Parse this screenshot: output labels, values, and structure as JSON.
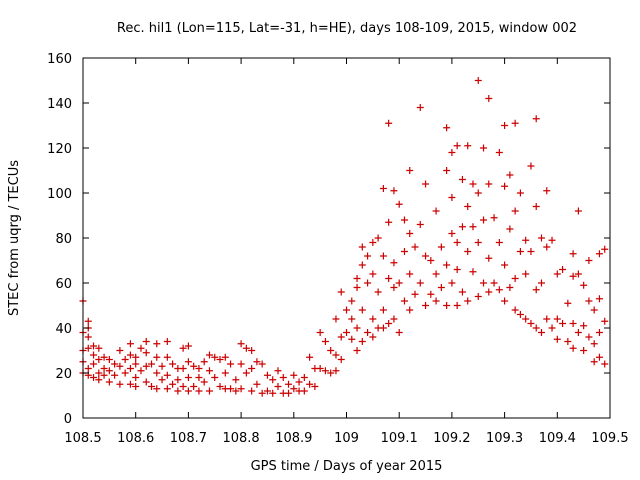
{
  "chart_data": {
    "type": "scatter",
    "title": "Rec. hil1 (Lon=115, Lat=-31, h=HE), days 108-109, 2015, window 002",
    "xlabel": "GPS time / Days of year 2015",
    "ylabel": "STEC from uqrg / TECUs",
    "xlim": [
      108.5,
      109.5
    ],
    "ylim": [
      0,
      160
    ],
    "xticks": [
      "108.5",
      "108.6",
      "108.7",
      "108.8",
      "108.9",
      "109",
      "109.1",
      "109.2",
      "109.3",
      "109.4",
      "109.5"
    ],
    "yticks": [
      "0",
      "20",
      "40",
      "60",
      "80",
      "100",
      "120",
      "140",
      "160"
    ],
    "grid": false,
    "marker": "plus",
    "color": "#cc0000",
    "series": [
      {
        "points": [
          [
            108.5,
            52
          ],
          [
            108.5,
            38
          ],
          [
            108.5,
            30
          ],
          [
            108.5,
            25
          ],
          [
            108.5,
            20
          ],
          [
            108.51,
            43
          ],
          [
            108.51,
            40
          ],
          [
            108.51,
            36
          ],
          [
            108.51,
            31
          ],
          [
            108.51,
            22
          ],
          [
            108.51,
            19
          ],
          [
            108.52,
            32
          ],
          [
            108.52,
            28
          ],
          [
            108.52,
            24
          ],
          [
            108.52,
            18
          ],
          [
            108.53,
            31
          ],
          [
            108.53,
            26
          ],
          [
            108.53,
            20
          ],
          [
            108.53,
            17
          ],
          [
            108.54,
            27
          ],
          [
            108.54,
            22
          ],
          [
            108.54,
            19
          ],
          [
            108.55,
            26
          ],
          [
            108.55,
            21
          ],
          [
            108.55,
            16
          ],
          [
            108.56,
            24
          ],
          [
            108.56,
            19
          ],
          [
            108.57,
            30
          ],
          [
            108.57,
            23
          ],
          [
            108.57,
            15
          ],
          [
            108.58,
            26
          ],
          [
            108.58,
            20
          ],
          [
            108.59,
            33
          ],
          [
            108.59,
            28
          ],
          [
            108.59,
            22
          ],
          [
            108.59,
            15
          ],
          [
            108.6,
            27
          ],
          [
            108.6,
            24
          ],
          [
            108.6,
            18
          ],
          [
            108.6,
            14
          ],
          [
            108.61,
            31
          ],
          [
            108.61,
            21
          ],
          [
            108.62,
            34
          ],
          [
            108.62,
            29
          ],
          [
            108.62,
            23
          ],
          [
            108.62,
            16
          ],
          [
            108.63,
            24
          ],
          [
            108.63,
            14
          ],
          [
            108.64,
            33
          ],
          [
            108.64,
            27
          ],
          [
            108.64,
            20
          ],
          [
            108.64,
            13
          ],
          [
            108.65,
            23
          ],
          [
            108.65,
            17
          ],
          [
            108.66,
            34
          ],
          [
            108.66,
            27
          ],
          [
            108.66,
            19
          ],
          [
            108.66,
            13
          ],
          [
            108.67,
            24
          ],
          [
            108.67,
            15
          ],
          [
            108.68,
            22
          ],
          [
            108.68,
            17
          ],
          [
            108.68,
            12
          ],
          [
            108.69,
            31
          ],
          [
            108.69,
            22
          ],
          [
            108.69,
            14
          ],
          [
            108.7,
            32
          ],
          [
            108.7,
            25
          ],
          [
            108.7,
            18
          ],
          [
            108.7,
            12
          ],
          [
            108.71,
            23
          ],
          [
            108.71,
            14
          ],
          [
            108.72,
            22
          ],
          [
            108.72,
            18
          ],
          [
            108.72,
            12
          ],
          [
            108.73,
            25
          ],
          [
            108.73,
            16
          ],
          [
            108.74,
            28
          ],
          [
            108.74,
            21
          ],
          [
            108.74,
            12
          ],
          [
            108.75,
            27
          ],
          [
            108.75,
            18
          ],
          [
            108.76,
            26
          ],
          [
            108.76,
            14
          ],
          [
            108.77,
            27
          ],
          [
            108.77,
            20
          ],
          [
            108.77,
            13
          ],
          [
            108.78,
            24
          ],
          [
            108.78,
            13
          ],
          [
            108.79,
            17
          ],
          [
            108.79,
            12
          ],
          [
            108.8,
            33
          ],
          [
            108.8,
            24
          ],
          [
            108.8,
            13
          ],
          [
            108.81,
            31
          ],
          [
            108.81,
            20
          ],
          [
            108.82,
            30
          ],
          [
            108.82,
            22
          ],
          [
            108.82,
            12
          ],
          [
            108.83,
            25
          ],
          [
            108.83,
            15
          ],
          [
            108.84,
            24
          ],
          [
            108.84,
            11
          ],
          [
            108.85,
            19
          ],
          [
            108.85,
            12
          ],
          [
            108.86,
            17
          ],
          [
            108.86,
            11
          ],
          [
            108.87,
            21
          ],
          [
            108.87,
            14
          ],
          [
            108.88,
            18
          ],
          [
            108.88,
            11
          ],
          [
            108.89,
            15
          ],
          [
            108.89,
            11
          ],
          [
            108.9,
            19
          ],
          [
            108.9,
            13
          ],
          [
            108.91,
            16
          ],
          [
            108.91,
            12
          ],
          [
            108.92,
            18
          ],
          [
            108.92,
            12
          ],
          [
            108.93,
            27
          ],
          [
            108.93,
            15
          ],
          [
            108.94,
            22
          ],
          [
            108.94,
            14
          ],
          [
            108.95,
            38
          ],
          [
            108.95,
            22
          ],
          [
            108.96,
            34
          ],
          [
            108.96,
            21
          ],
          [
            108.97,
            30
          ],
          [
            108.97,
            20
          ],
          [
            108.98,
            44
          ],
          [
            108.98,
            28
          ],
          [
            108.98,
            21
          ],
          [
            108.99,
            56
          ],
          [
            108.99,
            36
          ],
          [
            108.99,
            26
          ],
          [
            109.0,
            48
          ],
          [
            109.0,
            38
          ],
          [
            109.01,
            52
          ],
          [
            109.01,
            44
          ],
          [
            109.01,
            35
          ],
          [
            109.02,
            62
          ],
          [
            109.02,
            58
          ],
          [
            109.02,
            40
          ],
          [
            109.02,
            30
          ],
          [
            109.03,
            76
          ],
          [
            109.03,
            68
          ],
          [
            109.03,
            48
          ],
          [
            109.03,
            34
          ],
          [
            109.04,
            72
          ],
          [
            109.04,
            60
          ],
          [
            109.04,
            38
          ],
          [
            109.05,
            78
          ],
          [
            109.05,
            64
          ],
          [
            109.05,
            44
          ],
          [
            109.05,
            36
          ],
          [
            109.06,
            80
          ],
          [
            109.06,
            56
          ],
          [
            109.06,
            40
          ],
          [
            109.07,
            102
          ],
          [
            109.07,
            72
          ],
          [
            109.07,
            48
          ],
          [
            109.07,
            40
          ],
          [
            109.08,
            131
          ],
          [
            109.08,
            87
          ],
          [
            109.08,
            62
          ],
          [
            109.08,
            42
          ],
          [
            109.09,
            101
          ],
          [
            109.09,
            69
          ],
          [
            109.09,
            58
          ],
          [
            109.09,
            44
          ],
          [
            109.1,
            95
          ],
          [
            109.1,
            60
          ],
          [
            109.1,
            38
          ],
          [
            109.11,
            88
          ],
          [
            109.11,
            74
          ],
          [
            109.11,
            52
          ],
          [
            109.12,
            110
          ],
          [
            109.12,
            82
          ],
          [
            109.12,
            64
          ],
          [
            109.12,
            48
          ],
          [
            109.13,
            76
          ],
          [
            109.13,
            55
          ],
          [
            109.14,
            138
          ],
          [
            109.14,
            86
          ],
          [
            109.14,
            60
          ],
          [
            109.15,
            104
          ],
          [
            109.15,
            72
          ],
          [
            109.15,
            50
          ],
          [
            109.16,
            70
          ],
          [
            109.16,
            55
          ],
          [
            109.17,
            92
          ],
          [
            109.17,
            64
          ],
          [
            109.17,
            52
          ],
          [
            109.18,
            76
          ],
          [
            109.18,
            58
          ],
          [
            109.19,
            129
          ],
          [
            109.19,
            110
          ],
          [
            109.19,
            68
          ],
          [
            109.19,
            50
          ],
          [
            109.2,
            118
          ],
          [
            109.2,
            98
          ],
          [
            109.2,
            82
          ],
          [
            109.2,
            60
          ],
          [
            109.21,
            121
          ],
          [
            109.21,
            78
          ],
          [
            109.21,
            66
          ],
          [
            109.21,
            50
          ],
          [
            109.22,
            106
          ],
          [
            109.22,
            85
          ],
          [
            109.22,
            56
          ],
          [
            109.23,
            121
          ],
          [
            109.23,
            94
          ],
          [
            109.23,
            74
          ],
          [
            109.23,
            52
          ],
          [
            109.24,
            104
          ],
          [
            109.24,
            85
          ],
          [
            109.24,
            65
          ],
          [
            109.25,
            150
          ],
          [
            109.25,
            100
          ],
          [
            109.25,
            78
          ],
          [
            109.25,
            54
          ],
          [
            109.26,
            120
          ],
          [
            109.26,
            88
          ],
          [
            109.26,
            60
          ],
          [
            109.27,
            142
          ],
          [
            109.27,
            104
          ],
          [
            109.27,
            71
          ],
          [
            109.27,
            56
          ],
          [
            109.28,
            89
          ],
          [
            109.28,
            60
          ],
          [
            109.29,
            118
          ],
          [
            109.29,
            78
          ],
          [
            109.29,
            57
          ],
          [
            109.3,
            130
          ],
          [
            109.3,
            103
          ],
          [
            109.3,
            68
          ],
          [
            109.3,
            52
          ],
          [
            109.31,
            108
          ],
          [
            109.31,
            84
          ],
          [
            109.31,
            58
          ],
          [
            109.32,
            131
          ],
          [
            109.32,
            92
          ],
          [
            109.32,
            62
          ],
          [
            109.32,
            48
          ],
          [
            109.33,
            100
          ],
          [
            109.33,
            74
          ],
          [
            109.33,
            46
          ],
          [
            109.34,
            79
          ],
          [
            109.34,
            64
          ],
          [
            109.34,
            44
          ],
          [
            109.35,
            112
          ],
          [
            109.35,
            74
          ],
          [
            109.35,
            42
          ],
          [
            109.36,
            133
          ],
          [
            109.36,
            94
          ],
          [
            109.36,
            57
          ],
          [
            109.36,
            40
          ],
          [
            109.37,
            80
          ],
          [
            109.37,
            60
          ],
          [
            109.37,
            38
          ],
          [
            109.38,
            101
          ],
          [
            109.38,
            76
          ],
          [
            109.38,
            44
          ],
          [
            109.39,
            79
          ],
          [
            109.39,
            40
          ],
          [
            109.4,
            64
          ],
          [
            109.4,
            44
          ],
          [
            109.4,
            35
          ],
          [
            109.41,
            66
          ],
          [
            109.41,
            42
          ],
          [
            109.42,
            51
          ],
          [
            109.42,
            34
          ],
          [
            109.43,
            73
          ],
          [
            109.43,
            63
          ],
          [
            109.43,
            42
          ],
          [
            109.43,
            31
          ],
          [
            109.44,
            92
          ],
          [
            109.44,
            64
          ],
          [
            109.44,
            38
          ],
          [
            109.45,
            59
          ],
          [
            109.45,
            41
          ],
          [
            109.45,
            30
          ],
          [
            109.46,
            70
          ],
          [
            109.46,
            52
          ],
          [
            109.46,
            36
          ],
          [
            109.47,
            48
          ],
          [
            109.47,
            33
          ],
          [
            109.47,
            25
          ],
          [
            109.48,
            73
          ],
          [
            109.48,
            53
          ],
          [
            109.48,
            38
          ],
          [
            109.48,
            27
          ],
          [
            109.49,
            75
          ],
          [
            109.49,
            43
          ],
          [
            109.49,
            24
          ]
        ]
      }
    ]
  }
}
